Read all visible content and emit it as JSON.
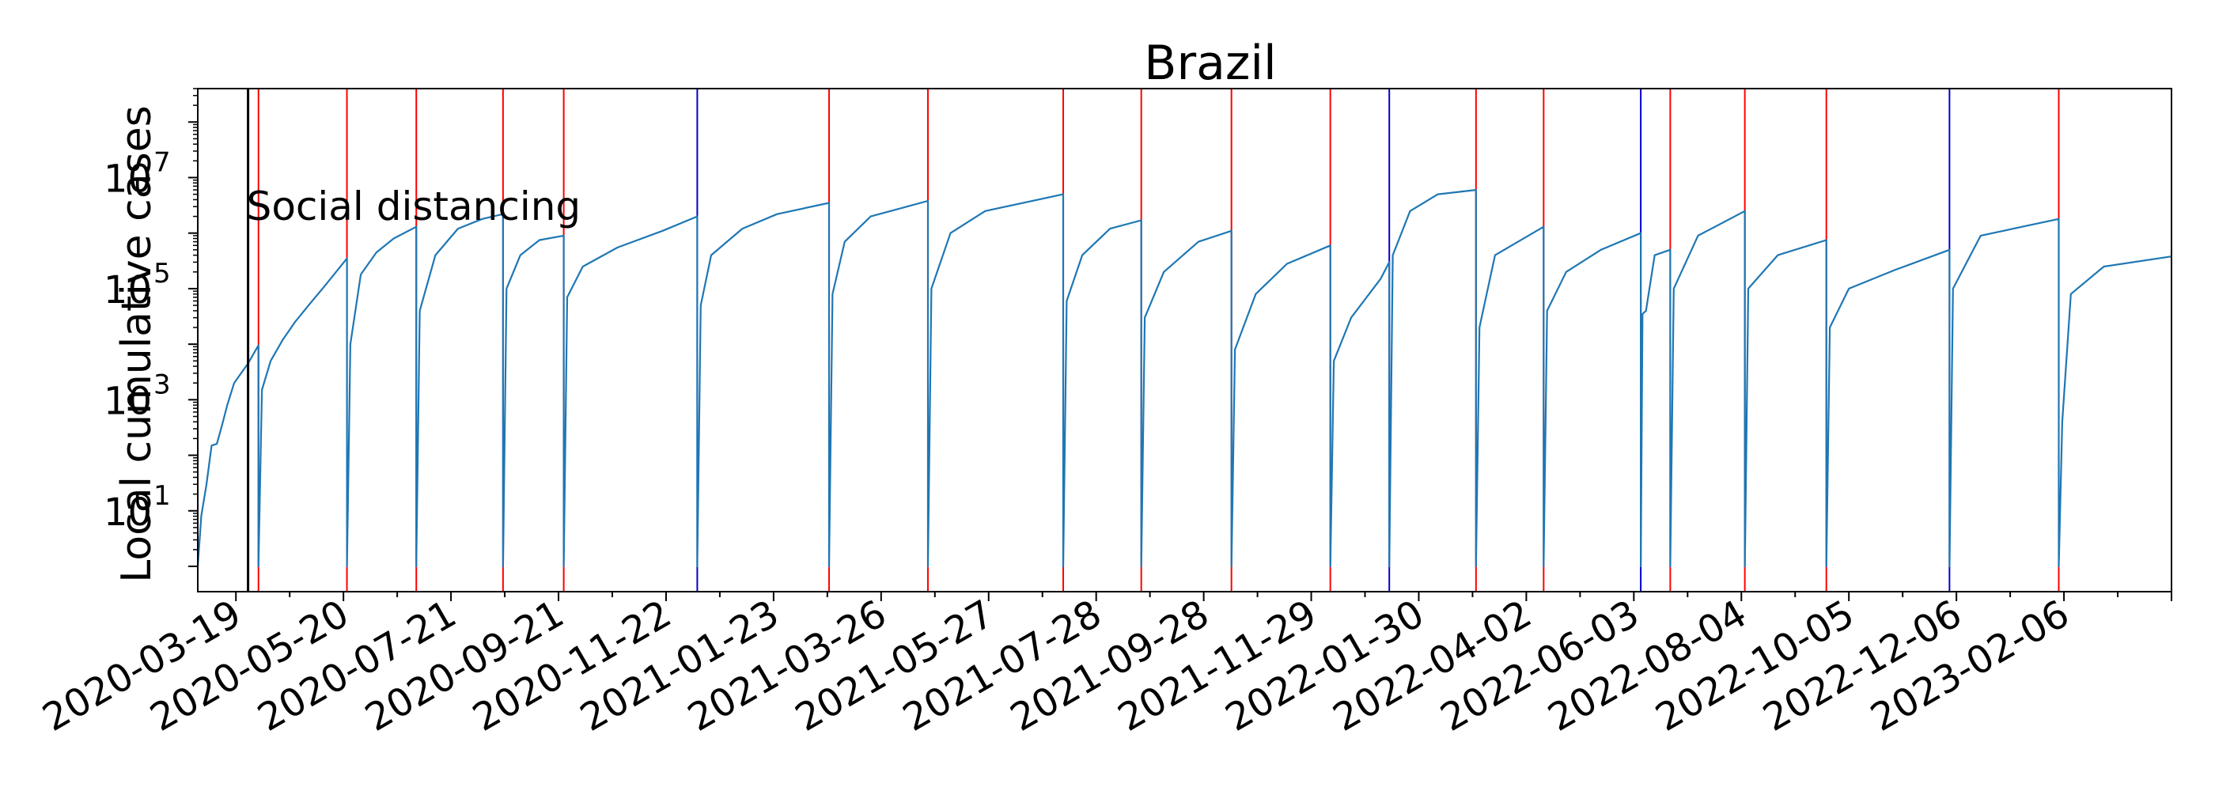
{
  "chart_data": {
    "type": "line",
    "title": "Brazil",
    "xlabel": "",
    "ylabel": "Local cumulative cases",
    "y_scale": "log",
    "ylim": [
      0.35,
      400000000
    ],
    "xlim": [
      "2020-02-26",
      "2023-04-09"
    ],
    "grid": false,
    "x_ticks": [
      "2020-03-19",
      "2020-05-20",
      "2020-07-21",
      "2020-09-21",
      "2020-11-22",
      "2021-01-23",
      "2021-03-26",
      "2021-05-27",
      "2021-07-28",
      "2021-09-28",
      "2021-11-29",
      "2022-01-30",
      "2022-04-02",
      "2022-06-03",
      "2022-08-04",
      "2022-10-05",
      "2022-12-06",
      "2023-02-06"
    ],
    "y_ticks": [
      {
        "value": 10,
        "base": "10",
        "exp": "1"
      },
      {
        "value": 1000,
        "base": "10",
        "exp": "3"
      },
      {
        "value": 100000,
        "base": "10",
        "exp": "5"
      },
      {
        "value": 10000000,
        "base": "10",
        "exp": "7"
      }
    ],
    "colors": {
      "series": "#1f77b4",
      "red_line": "#ff0000",
      "blue_line": "#0000cc",
      "intervention": "#000000"
    },
    "intervention": {
      "date": "2020-03-26",
      "label": "Social distancing"
    },
    "vertical_lines": [
      {
        "date": "2020-04-01",
        "color": "red"
      },
      {
        "date": "2020-05-22",
        "color": "red"
      },
      {
        "date": "2020-07-01",
        "color": "red"
      },
      {
        "date": "2020-08-20",
        "color": "red"
      },
      {
        "date": "2020-09-24",
        "color": "red"
      },
      {
        "date": "2020-12-10",
        "color": "blue"
      },
      {
        "date": "2021-02-24",
        "color": "red"
      },
      {
        "date": "2021-04-22",
        "color": "red"
      },
      {
        "date": "2021-07-09",
        "color": "red"
      },
      {
        "date": "2021-08-23",
        "color": "red"
      },
      {
        "date": "2021-10-14",
        "color": "red"
      },
      {
        "date": "2021-12-10",
        "color": "red"
      },
      {
        "date": "2022-01-13",
        "color": "blue"
      },
      {
        "date": "2022-03-04",
        "color": "red"
      },
      {
        "date": "2022-04-12",
        "color": "red"
      },
      {
        "date": "2022-06-07",
        "color": "blue"
      },
      {
        "date": "2022-06-24",
        "color": "red"
      },
      {
        "date": "2022-08-06",
        "color": "red"
      },
      {
        "date": "2022-09-22",
        "color": "red"
      },
      {
        "date": "2022-12-02",
        "color": "blue"
      },
      {
        "date": "2023-02-03",
        "color": "red"
      }
    ],
    "series": [
      {
        "points": [
          [
            "2020-02-26",
            1
          ],
          [
            "2020-02-28",
            8
          ],
          [
            "2020-03-02",
            30
          ],
          [
            "2020-03-05",
            150
          ],
          [
            "2020-03-08",
            160
          ],
          [
            "2020-03-11",
            350
          ],
          [
            "2020-03-14",
            800
          ],
          [
            "2020-03-18",
            2000
          ],
          [
            "2020-03-22",
            3000
          ],
          [
            "2020-03-26",
            4500
          ],
          [
            "2020-03-30",
            7500
          ],
          [
            "2020-04-01",
            9500
          ],
          [
            "2020-04-01",
            1
          ],
          [
            "2020-04-03",
            1500
          ],
          [
            "2020-04-08",
            5000
          ],
          [
            "2020-04-15",
            12000
          ],
          [
            "2020-04-22",
            25000
          ],
          [
            "2020-05-01",
            55000
          ],
          [
            "2020-05-10",
            120000
          ],
          [
            "2020-05-22",
            350000
          ],
          [
            "2020-05-22",
            1
          ],
          [
            "2020-05-24",
            10000
          ],
          [
            "2020-05-30",
            180000
          ],
          [
            "2020-06-08",
            450000
          ],
          [
            "2020-06-18",
            800000
          ],
          [
            "2020-07-01",
            1300000
          ],
          [
            "2020-07-01",
            1
          ],
          [
            "2020-07-03",
            40000
          ],
          [
            "2020-07-12",
            400000
          ],
          [
            "2020-07-25",
            1200000
          ],
          [
            "2020-08-08",
            1800000
          ],
          [
            "2020-08-20",
            2200000
          ],
          [
            "2020-08-20",
            1
          ],
          [
            "2020-08-22",
            100000
          ],
          [
            "2020-08-30",
            400000
          ],
          [
            "2020-09-10",
            750000
          ],
          [
            "2020-09-24",
            900000
          ],
          [
            "2020-09-24",
            1
          ],
          [
            "2020-09-26",
            70000
          ],
          [
            "2020-10-05",
            250000
          ],
          [
            "2020-10-25",
            550000
          ],
          [
            "2020-11-20",
            1100000
          ],
          [
            "2020-12-10",
            2000000
          ],
          [
            "2020-12-10",
            1
          ],
          [
            "2020-12-12",
            50000
          ],
          [
            "2020-12-18",
            400000
          ],
          [
            "2021-01-05",
            1200000
          ],
          [
            "2021-01-25",
            2200000
          ],
          [
            "2021-02-24",
            3500000
          ],
          [
            "2021-02-24",
            1
          ],
          [
            "2021-02-26",
            80000
          ],
          [
            "2021-03-05",
            700000
          ],
          [
            "2021-03-20",
            2000000
          ],
          [
            "2021-04-22",
            3800000
          ],
          [
            "2021-04-22",
            1
          ],
          [
            "2021-04-24",
            100000
          ],
          [
            "2021-05-05",
            1000000
          ],
          [
            "2021-05-25",
            2500000
          ],
          [
            "2021-07-09",
            5000000
          ],
          [
            "2021-07-09",
            1
          ],
          [
            "2021-07-11",
            60000
          ],
          [
            "2021-07-20",
            400000
          ],
          [
            "2021-08-05",
            1200000
          ],
          [
            "2021-08-23",
            1700000
          ],
          [
            "2021-08-23",
            1
          ],
          [
            "2021-08-25",
            30000
          ],
          [
            "2021-09-05",
            200000
          ],
          [
            "2021-09-25",
            700000
          ],
          [
            "2021-10-14",
            1100000
          ],
          [
            "2021-10-14",
            1
          ],
          [
            "2021-10-16",
            8000
          ],
          [
            "2021-10-28",
            80000
          ],
          [
            "2021-11-15",
            280000
          ],
          [
            "2021-12-10",
            600000
          ],
          [
            "2021-12-10",
            1
          ],
          [
            "2021-12-12",
            5000
          ],
          [
            "2021-12-22",
            30000
          ],
          [
            "2022-01-08",
            150000
          ],
          [
            "2022-01-13",
            300000
          ],
          [
            "2022-01-13",
            1
          ],
          [
            "2022-01-15",
            400000
          ],
          [
            "2022-01-25",
            2500000
          ],
          [
            "2022-02-10",
            5000000
          ],
          [
            "2022-03-04",
            6000000
          ],
          [
            "2022-03-04",
            1
          ],
          [
            "2022-03-06",
            20000
          ],
          [
            "2022-03-15",
            400000
          ],
          [
            "2022-04-12",
            1300000
          ],
          [
            "2022-04-12",
            1
          ],
          [
            "2022-04-14",
            40000
          ],
          [
            "2022-04-25",
            200000
          ],
          [
            "2022-05-15",
            500000
          ],
          [
            "2022-06-07",
            1000000
          ],
          [
            "2022-06-07",
            1
          ],
          [
            "2022-06-08",
            35000
          ],
          [
            "2022-06-10",
            40000
          ],
          [
            "2022-06-15",
            400000
          ],
          [
            "2022-06-24",
            500000
          ],
          [
            "2022-06-24",
            1
          ],
          [
            "2022-06-26",
            100000
          ],
          [
            "2022-07-10",
            900000
          ],
          [
            "2022-08-06",
            2500000
          ],
          [
            "2022-08-06",
            1
          ],
          [
            "2022-08-08",
            100000
          ],
          [
            "2022-08-25",
            400000
          ],
          [
            "2022-09-22",
            750000
          ],
          [
            "2022-09-22",
            1
          ],
          [
            "2022-09-24",
            20000
          ],
          [
            "2022-10-05",
            100000
          ],
          [
            "2022-11-01",
            220000
          ],
          [
            "2022-12-02",
            500000
          ],
          [
            "2022-12-02",
            1
          ],
          [
            "2022-12-04",
            100000
          ],
          [
            "2022-12-20",
            900000
          ],
          [
            "2023-02-03",
            1800000
          ],
          [
            "2023-02-03",
            1
          ],
          [
            "2023-02-05",
            400
          ],
          [
            "2023-02-10",
            80000
          ],
          [
            "2023-03-01",
            250000
          ],
          [
            "2023-04-09",
            380000
          ]
        ]
      }
    ]
  }
}
